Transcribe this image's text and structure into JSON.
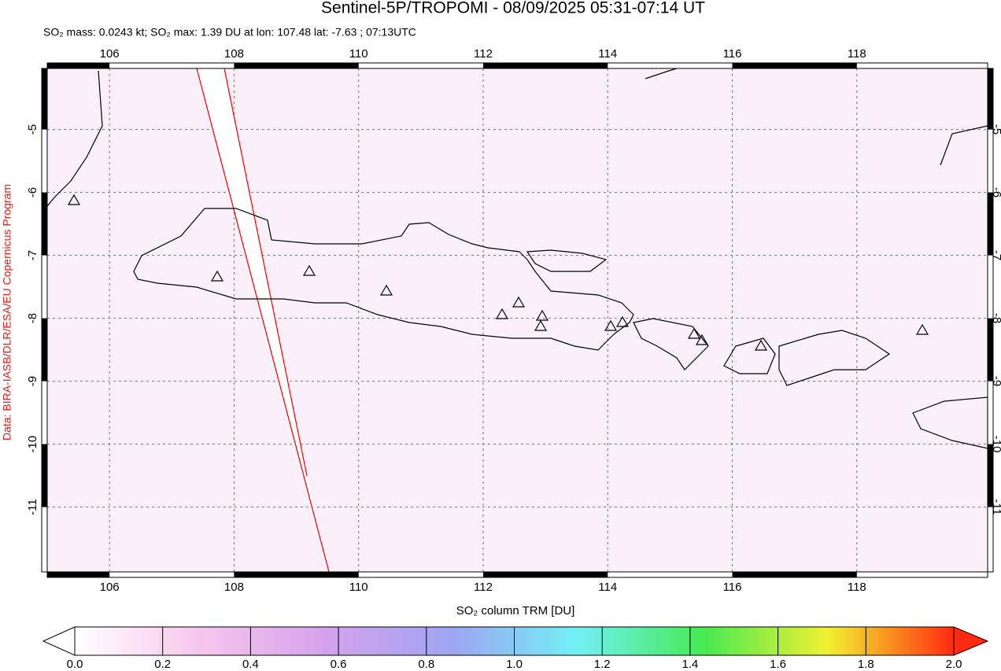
{
  "chart_data": {
    "type": "map",
    "title": "Sentinel-5P/TROPOMI - 08/09/2025 05:31-07:14 UT",
    "subtitle": "SO₂ mass: 0.0243 kt; SO₂ max: 1.39 DU at lon: 107.48 lat: -7.63 ; 07:13UTC",
    "credit": "Data: BIRA-IASB/DLR/ESA/EU Copernicus Program",
    "xlim": [
      105,
      120.1
    ],
    "ylim": [
      -12.03,
      -4.03
    ],
    "xticks": [
      106,
      108,
      110,
      112,
      114,
      116,
      118
    ],
    "yticks": [
      -5,
      -6,
      -7,
      -8,
      -9,
      -10,
      -11
    ],
    "grid": true,
    "colorbar": {
      "label": "SO₂ column TRM [DU]",
      "lim": [
        0,
        2
      ],
      "ticks": [
        {
          "value": 0,
          "label": "0.0"
        },
        {
          "value": 0.2,
          "label": "0.2"
        },
        {
          "value": 0.4,
          "label": "0.4"
        },
        {
          "value": 0.6,
          "label": "0.6"
        },
        {
          "value": 0.8,
          "label": "0.8"
        },
        {
          "value": 1,
          "label": "1.0"
        },
        {
          "value": 1.2,
          "label": "1.2"
        },
        {
          "value": 1.4,
          "label": "1.4"
        },
        {
          "value": 1.6,
          "label": "1.6"
        },
        {
          "value": 1.8,
          "label": "1.8"
        },
        {
          "value": 2,
          "label": "2.0"
        }
      ],
      "colors": [
        "#ffffff",
        "#f7c6ee",
        "#d4a2ec",
        "#9fa4f2",
        "#72f0f6",
        "#45ea52",
        "#f2f031",
        "#ff2a10"
      ]
    }
  }
}
